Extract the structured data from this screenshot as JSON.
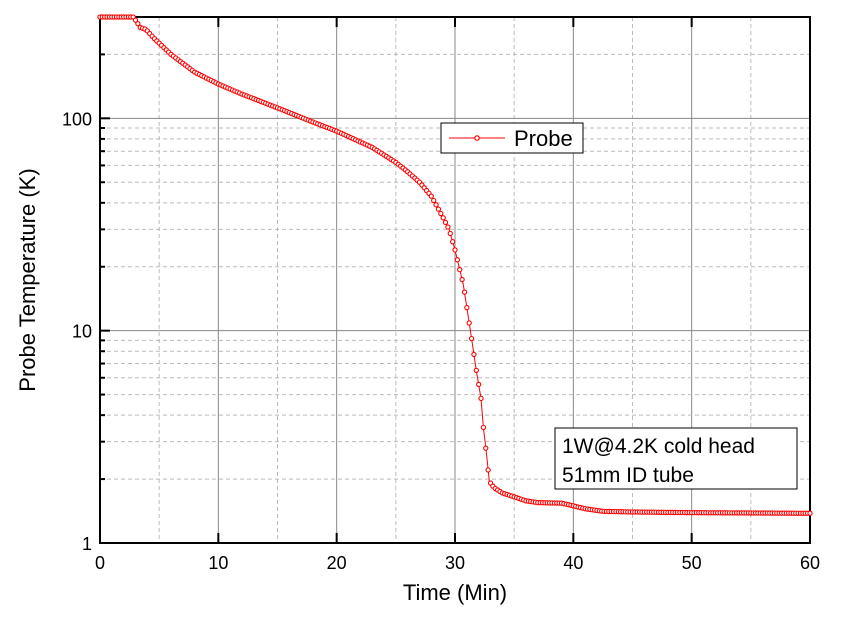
{
  "chart_data": {
    "type": "line",
    "title": "",
    "xlabel": "Time (Min)",
    "ylabel": "Probe Temperature (K)",
    "xlim": [
      0,
      60
    ],
    "ylim": [
      1,
      300
    ],
    "yscale": "log",
    "grid": true,
    "xticks": [
      0,
      10,
      20,
      30,
      40,
      50,
      60
    ],
    "xtick_labels": [
      "0",
      "10",
      "20",
      "30",
      "40",
      "50",
      "60"
    ],
    "yticks": [
      1,
      10,
      100
    ],
    "ytick_labels": [
      "1",
      "10",
      "100"
    ],
    "legend": {
      "placement": "upper-center",
      "entries": [
        "Probe"
      ]
    },
    "annotation": [
      "1W@4.2K cold head",
      "51mm ID tube"
    ],
    "series": [
      {
        "name": "Probe",
        "color": "#ff0000",
        "x": [
          0,
          2.8,
          3.1,
          3.4,
          3.9,
          4.5,
          6,
          8,
          10,
          12,
          15,
          18,
          20,
          23,
          25,
          26,
          27,
          28,
          29,
          29.5,
          30.0,
          30.7,
          31.3,
          31.8,
          32.2,
          32.4,
          32.7,
          32.9,
          33.3,
          34,
          35,
          36,
          37,
          39,
          39.5,
          41,
          42.5,
          45,
          50,
          60
        ],
        "y": [
          300,
          300,
          285,
          268,
          262,
          240,
          200,
          165,
          145,
          130,
          112,
          96,
          87,
          73,
          62,
          56,
          50,
          43,
          34,
          30,
          24,
          16.5,
          10,
          6.5,
          4.8,
          3.5,
          2.5,
          1.95,
          1.82,
          1.72,
          1.65,
          1.58,
          1.55,
          1.54,
          1.52,
          1.45,
          1.41,
          1.4,
          1.39,
          1.38
        ]
      }
    ]
  }
}
